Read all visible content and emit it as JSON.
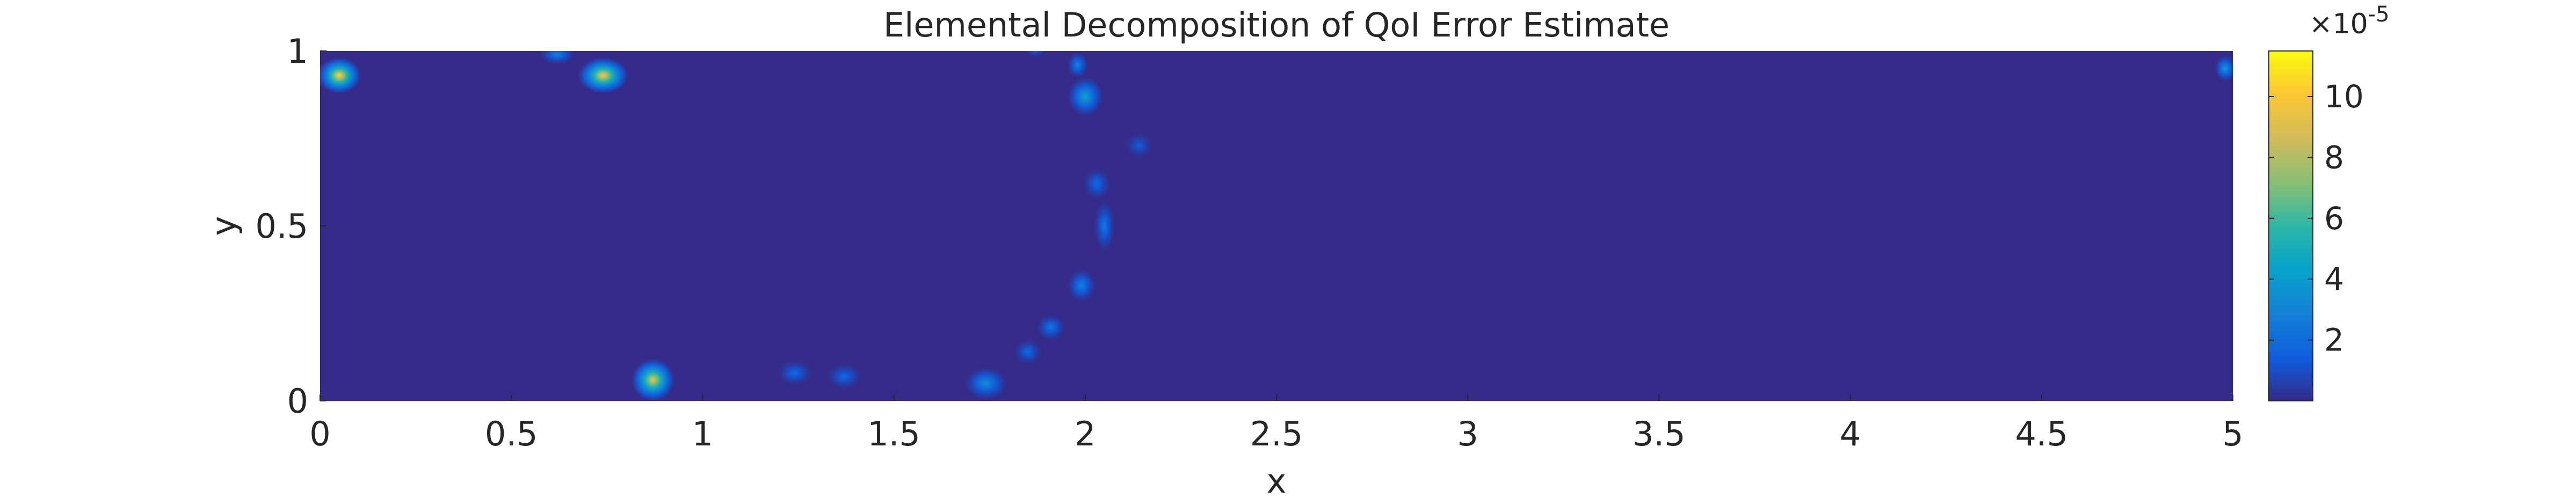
{
  "chart_data": {
    "type": "heatmap",
    "title": "Elemental Decomposition of QoI Error Estimate",
    "xlabel": "x",
    "ylabel": "y",
    "xlim": [
      0,
      5
    ],
    "ylim": [
      0,
      1
    ],
    "xticks": [
      0,
      0.5,
      1,
      1.5,
      2,
      2.5,
      3,
      3.5,
      4,
      4.5,
      5
    ],
    "xtick_labels": [
      "0",
      "0.5",
      "1",
      "1.5",
      "2",
      "2.5",
      "3",
      "3.5",
      "4",
      "4.5",
      "5"
    ],
    "yticks": [
      0,
      0.5,
      1
    ],
    "ytick_labels": [
      "0",
      "0.5",
      "1"
    ],
    "colormap": "parula",
    "background_color": "#352a87",
    "colorbar": {
      "range": [
        0,
        11.5
      ],
      "ticks": [
        2,
        4,
        6,
        8,
        10
      ],
      "tick_labels": [
        "2",
        "4",
        "6",
        "8",
        "10"
      ],
      "multiplier_base": "×10",
      "multiplier_exp": "-5"
    },
    "hotspots": [
      {
        "x": 0.05,
        "y": 0.93,
        "value": 10.5,
        "rx": 0.06,
        "ry": 0.055
      },
      {
        "x": 0.74,
        "y": 0.93,
        "value": 10.0,
        "rx": 0.07,
        "ry": 0.055
      },
      {
        "x": 0.62,
        "y": 0.99,
        "value": 3.0,
        "rx": 0.05,
        "ry": 0.03
      },
      {
        "x": 0.87,
        "y": 0.06,
        "value": 9.5,
        "rx": 0.06,
        "ry": 0.065
      },
      {
        "x": 1.24,
        "y": 0.08,
        "value": 2.0,
        "rx": 0.05,
        "ry": 0.04
      },
      {
        "x": 1.37,
        "y": 0.07,
        "value": 2.0,
        "rx": 0.05,
        "ry": 0.04
      },
      {
        "x": 1.74,
        "y": 0.05,
        "value": 3.5,
        "rx": 0.06,
        "ry": 0.05
      },
      {
        "x": 1.85,
        "y": 0.14,
        "value": 2.0,
        "rx": 0.04,
        "ry": 0.04
      },
      {
        "x": 1.91,
        "y": 0.21,
        "value": 2.5,
        "rx": 0.04,
        "ry": 0.04
      },
      {
        "x": 1.99,
        "y": 0.33,
        "value": 3.0,
        "rx": 0.04,
        "ry": 0.05
      },
      {
        "x": 2.05,
        "y": 0.5,
        "value": 2.5,
        "rx": 0.03,
        "ry": 0.08
      },
      {
        "x": 2.03,
        "y": 0.62,
        "value": 2.0,
        "rx": 0.04,
        "ry": 0.05
      },
      {
        "x": 2.0,
        "y": 0.87,
        "value": 4.5,
        "rx": 0.05,
        "ry": 0.06
      },
      {
        "x": 1.98,
        "y": 0.96,
        "value": 3.0,
        "rx": 0.03,
        "ry": 0.04
      },
      {
        "x": 2.14,
        "y": 0.73,
        "value": 1.5,
        "rx": 0.04,
        "ry": 0.04
      },
      {
        "x": 1.87,
        "y": 1.0,
        "value": 1.5,
        "rx": 0.03,
        "ry": 0.02
      },
      {
        "x": 4.98,
        "y": 0.95,
        "value": 4.0,
        "rx": 0.03,
        "ry": 0.04
      }
    ]
  }
}
